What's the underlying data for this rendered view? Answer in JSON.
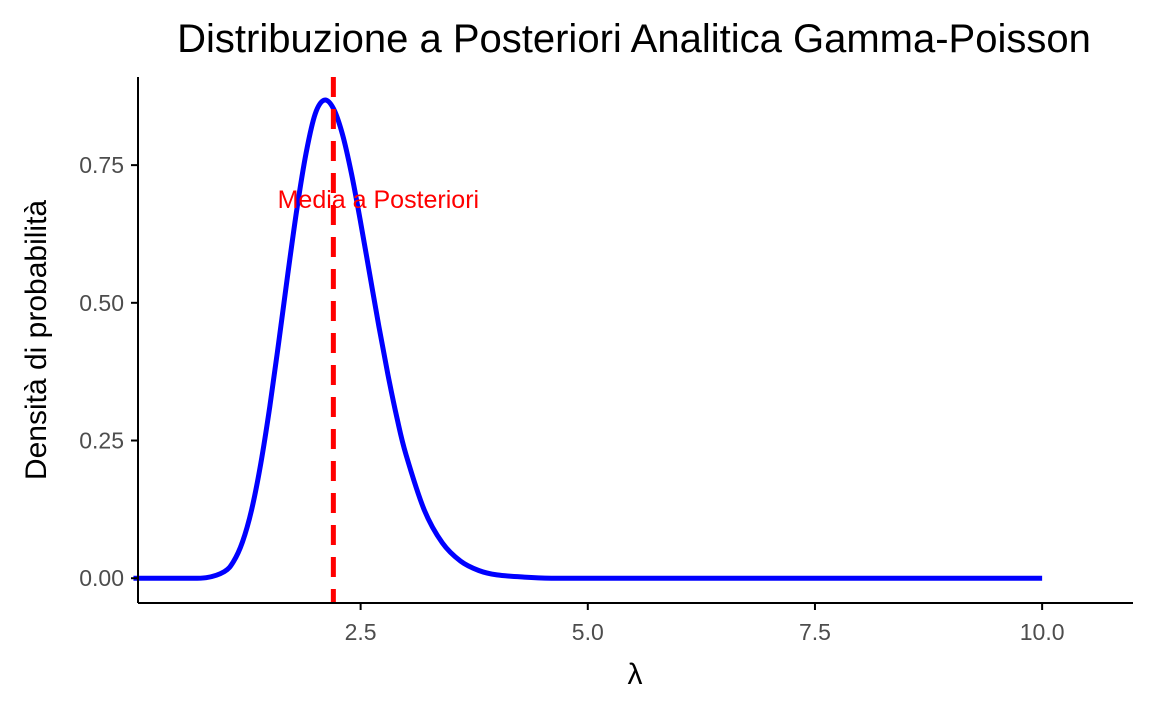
{
  "chart_data": {
    "type": "line",
    "title": "Distribuzione a Posteriori Analitica Gamma-Poisson",
    "xlabel": "λ",
    "ylabel": "Densità di probabilità",
    "xlim": [
      0.05,
      11.0
    ],
    "ylim": [
      -0.045,
      0.91
    ],
    "x_ticks": [
      {
        "value": 2.5,
        "label": "2.5"
      },
      {
        "value": 5.0,
        "label": "5.0"
      },
      {
        "value": 7.5,
        "label": "7.5"
      },
      {
        "value": 10.0,
        "label": "10.0"
      }
    ],
    "y_ticks": [
      {
        "value": 0.0,
        "label": "0.00"
      },
      {
        "value": 0.25,
        "label": "0.25"
      },
      {
        "value": 0.5,
        "label": "0.50"
      },
      {
        "value": 0.75,
        "label": "0.75"
      }
    ],
    "grid": false,
    "series": [
      {
        "color": "#0000ff",
        "points": [
          [
            0.0,
            0.0
          ],
          [
            0.5,
            0.0
          ],
          [
            0.8,
            0.001
          ],
          [
            1.0,
            0.012
          ],
          [
            1.1,
            0.03
          ],
          [
            1.2,
            0.066
          ],
          [
            1.3,
            0.124
          ],
          [
            1.4,
            0.207
          ],
          [
            1.5,
            0.311
          ],
          [
            1.6,
            0.43
          ],
          [
            1.7,
            0.554
          ],
          [
            1.8,
            0.672
          ],
          [
            1.9,
            0.772
          ],
          [
            2.0,
            0.843
          ],
          [
            2.1,
            0.868
          ],
          [
            2.2,
            0.853
          ],
          [
            2.3,
            0.806
          ],
          [
            2.4,
            0.734
          ],
          [
            2.5,
            0.646
          ],
          [
            2.6,
            0.552
          ],
          [
            2.7,
            0.458
          ],
          [
            2.8,
            0.37
          ],
          [
            2.9,
            0.291
          ],
          [
            3.0,
            0.224
          ],
          [
            3.2,
            0.124
          ],
          [
            3.4,
            0.064
          ],
          [
            3.6,
            0.031
          ],
          [
            3.8,
            0.014
          ],
          [
            4.0,
            0.006
          ],
          [
            4.3,
            0.002
          ],
          [
            4.6,
            0.0
          ],
          [
            5.0,
            0.0
          ],
          [
            6.0,
            0.0
          ],
          [
            7.0,
            0.0
          ],
          [
            8.0,
            0.0
          ],
          [
            9.0,
            0.0
          ],
          [
            10.0,
            0.0
          ]
        ]
      }
    ],
    "vline": {
      "x": 2.2,
      "color": "#ff0000",
      "style": "dashed"
    },
    "annotation": {
      "text": "Media a Posteriori",
      "x": 2.2,
      "y": 0.69,
      "color": "#ff0000"
    }
  }
}
